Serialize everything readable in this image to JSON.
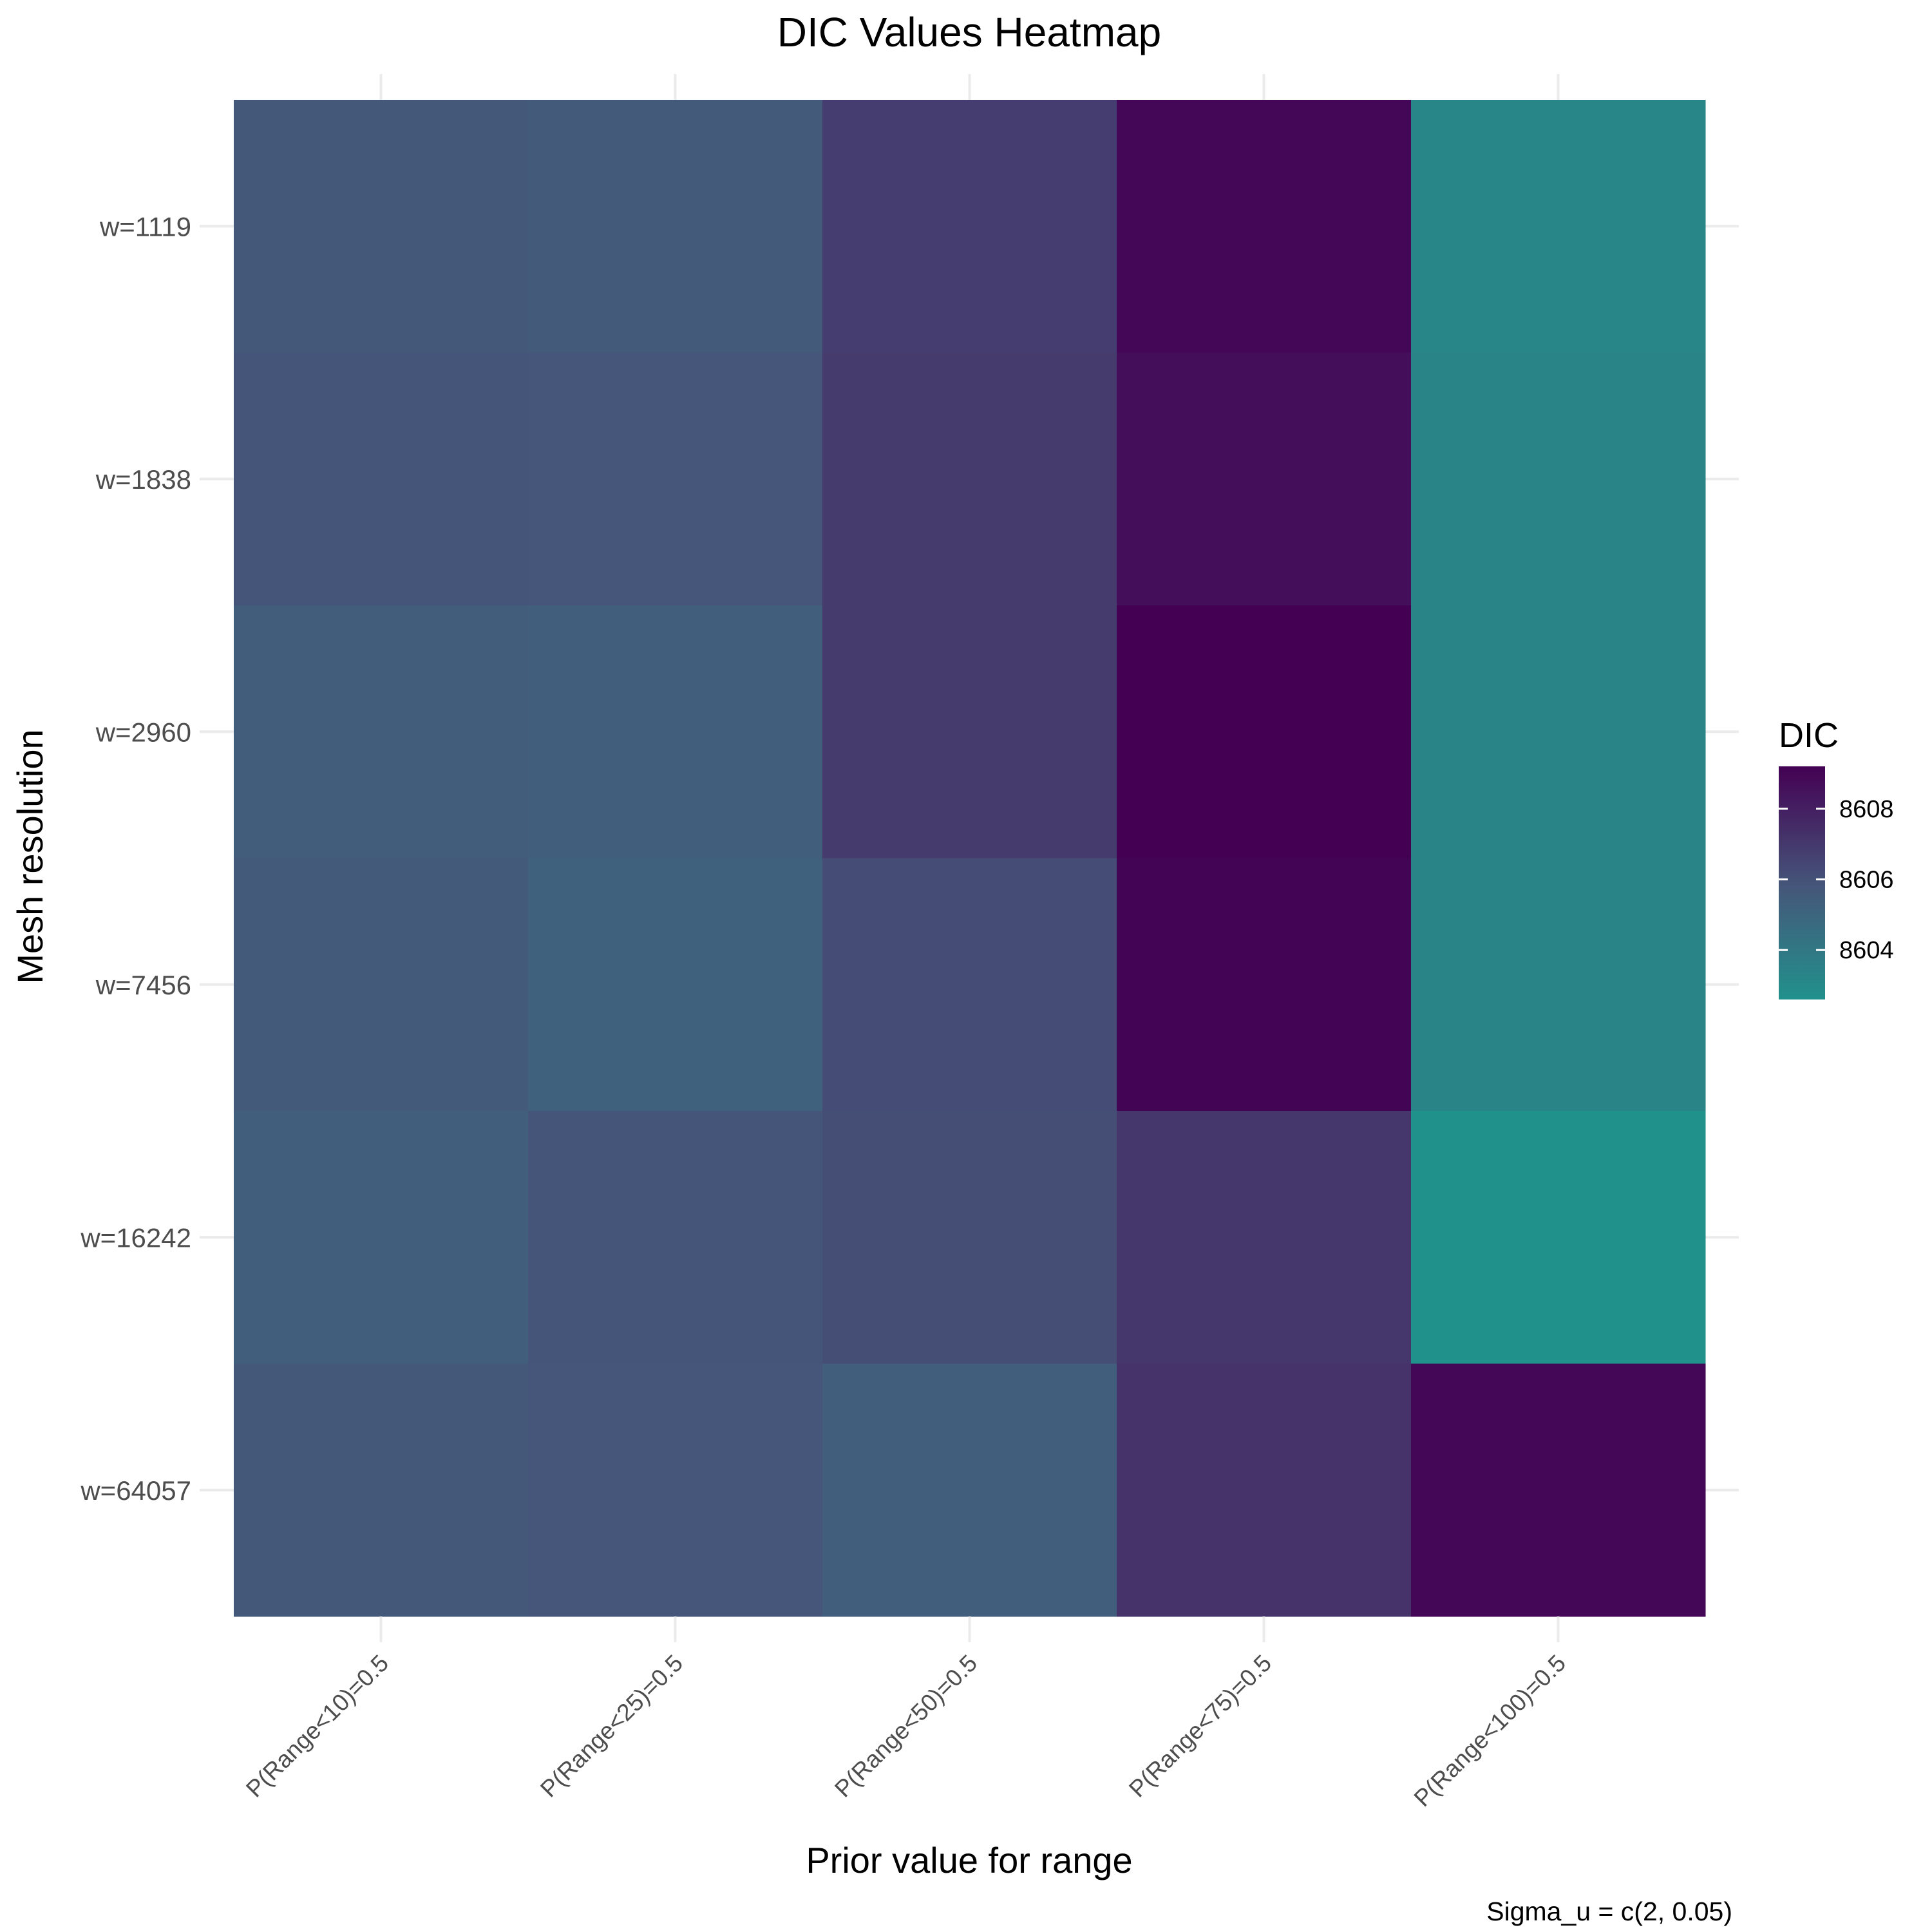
{
  "chart_data": {
    "type": "heatmap",
    "title": "DIC Values Heatmap",
    "xlabel": "Prior value for range",
    "ylabel": "Mesh resolution",
    "caption": "Sigma_u = c(2, 0.05)",
    "legend": {
      "title": "DIC",
      "placement": "right",
      "ticks": [
        "8604",
        "8606",
        "8608"
      ],
      "tick_values": [
        8604,
        8606,
        8608
      ],
      "range": [
        8602.6,
        8609.2
      ]
    },
    "x_categories": [
      "P(Range<10)=0.5",
      "P(Range<25)=0.5",
      "P(Range<50)=0.5",
      "P(Range<75)=0.5",
      "P(Range<100)=0.5"
    ],
    "y_categories": [
      "w=1119",
      "w=1838",
      "w=2960",
      "w=7456",
      "w=16242",
      "w=64057"
    ],
    "values": [
      [
        8605.7,
        8605.6,
        8606.8,
        8609.0,
        8603.2
      ],
      [
        8605.9,
        8605.8,
        8606.9,
        8608.7,
        8603.3
      ],
      [
        8605.5,
        8605.4,
        8606.9,
        8609.2,
        8603.3
      ],
      [
        8605.6,
        8605.2,
        8606.2,
        8609.1,
        8603.3
      ],
      [
        8605.4,
        8605.9,
        8606.1,
        8607.1,
        8602.6
      ],
      [
        8605.7,
        8605.8,
        8605.4,
        8607.2,
        8609.0
      ]
    ],
    "colors": {
      "low": "#21918c",
      "mid": "#45577a",
      "high": "#440154"
    },
    "grid": true
  }
}
